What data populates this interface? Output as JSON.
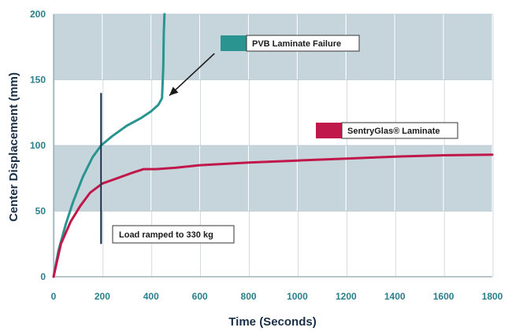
{
  "chart_data": {
    "type": "line",
    "xlabel": "Time (Seconds)",
    "ylabel": "Center Displacement (mm)",
    "xlim": [
      0,
      1800
    ],
    "ylim": [
      0,
      200
    ],
    "x_ticks": [
      "0",
      "200",
      "400",
      "600",
      "800",
      "1000",
      "1200",
      "1400",
      "1600",
      "1800"
    ],
    "y_ticks": [
      "0",
      "50",
      "100",
      "150",
      "200"
    ],
    "grid": true,
    "series": [
      {
        "name": "PVB Laminate Failure",
        "color": "#2a9590",
        "x": [
          0,
          20,
          50,
          80,
          120,
          160,
          195,
          240,
          300,
          360,
          400,
          430,
          445,
          450,
          452,
          455
        ],
        "y": [
          0,
          20,
          40,
          57,
          76,
          91,
          100,
          107,
          115,
          121,
          126,
          131,
          136,
          160,
          185,
          200
        ]
      },
      {
        "name": "SentryGlas® Laminate",
        "color": "#c0184a",
        "x": [
          0,
          30,
          70,
          110,
          150,
          200,
          260,
          320,
          370,
          420,
          500,
          600,
          800,
          1000,
          1200,
          1400,
          1600,
          1800
        ],
        "y": [
          0,
          25,
          42,
          54,
          64,
          71,
          75,
          79,
          82,
          82,
          83,
          85,
          87,
          88.5,
          90,
          91.5,
          92.5,
          93
        ]
      }
    ],
    "annotations": {
      "load_marker": {
        "label": "Load ramped to 330 kg",
        "x": 195,
        "y_range": [
          25,
          140
        ]
      },
      "failure_arrow": {
        "from": [
          660,
          170
        ],
        "to": [
          475,
          138
        ]
      }
    }
  }
}
